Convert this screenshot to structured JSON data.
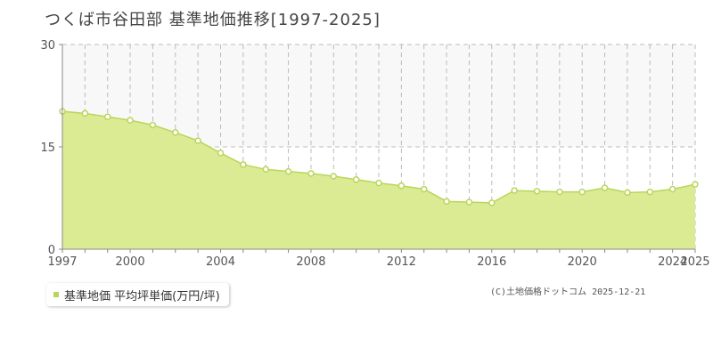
{
  "page": {
    "title": "つくば市谷田部 基準地価推移[1997-2025]",
    "copyright": "(C)土地価格ドットコム 2025-12-21"
  },
  "colors": {
    "area_fill": "#dbeb94",
    "line": "#b8d65a",
    "marker_fill": "#ffffff",
    "grid": "#bbbbbb",
    "axis": "#888888",
    "plot_bg_upper": "#f8f8f8"
  },
  "chart_data": {
    "type": "area",
    "title": "つくば市谷田部 基準地価推移[1997-2025]",
    "xlabel": "",
    "ylabel": "",
    "xlim": [
      1997,
      2025
    ],
    "ylim": [
      0,
      30
    ],
    "yticks": [
      0,
      15,
      30
    ],
    "xtick_labels": [
      "1997",
      "2000",
      "2004",
      "2008",
      "2012",
      "2016",
      "2020",
      "2024",
      "2025"
    ],
    "grid": true,
    "legend_position": "bottom-left",
    "series": [
      {
        "name": "基準地価 平均坪単価(万円/坪)",
        "x": [
          1997,
          1998,
          1999,
          2000,
          2001,
          2002,
          2003,
          2004,
          2005,
          2006,
          2007,
          2008,
          2009,
          2010,
          2011,
          2012,
          2013,
          2014,
          2015,
          2016,
          2017,
          2018,
          2019,
          2020,
          2021,
          2022,
          2023,
          2024,
          2025
        ],
        "values": [
          20.2,
          19.9,
          19.4,
          18.9,
          18.2,
          17.1,
          15.9,
          14.1,
          12.4,
          11.7,
          11.4,
          11.1,
          10.7,
          10.2,
          9.7,
          9.3,
          8.8,
          7.0,
          6.9,
          6.8,
          8.6,
          8.5,
          8.4,
          8.4,
          9.0,
          8.3,
          8.4,
          8.8,
          9.5
        ]
      }
    ]
  }
}
